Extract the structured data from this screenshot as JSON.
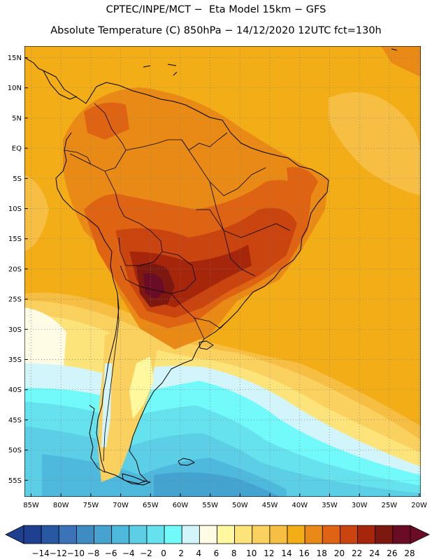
{
  "title_line1": "CPTEC/INPE/MCT −  Eta Model 15km − GFS",
  "title_line2": "Absolute Temperature (C) 850hPa − 14/12/2020 12UTC fct=130h",
  "lat_labels": [
    "15N",
    "10N",
    "5N",
    "EQ",
    "5S",
    "10S",
    "15S",
    "20S",
    "25S",
    "30S",
    "35S",
    "40S",
    "45S",
    "50S",
    "55S"
  ],
  "lon_labels": [
    "85W",
    "80W",
    "75W",
    "70W",
    "65W",
    "60W",
    "55W",
    "50W",
    "45W",
    "40W",
    "35W",
    "30W",
    "25W",
    "20W"
  ],
  "colorbar": {
    "colors": [
      "#1f3f8f",
      "#2958a3",
      "#3a73b7",
      "#3f8cc2",
      "#44a3cf",
      "#4eb9dc",
      "#5ccfe6",
      "#66e2ef",
      "#72fafb",
      "#d2f5fb",
      "#fffce6",
      "#fff89e",
      "#fde47a",
      "#fad05e",
      "#f6be42",
      "#f3ad17",
      "#e88a15",
      "#de6312",
      "#c9440f",
      "#a6260c",
      "#7d1811",
      "#6a0c26"
    ],
    "labels": [
      "−14",
      "−12",
      "−10",
      "−8",
      "−6",
      "−4",
      "−2",
      "0",
      "2",
      "4",
      "6",
      "8",
      "10",
      "12",
      "14",
      "16",
      "18",
      "20",
      "22",
      "24",
      "26",
      "28"
    ],
    "low_end_color": "#1f3f8f",
    "high_end_color": "#6a0c26"
  },
  "map_colors": {
    "ocean_warm": "#f3ad17",
    "c18": "#e88a15",
    "c20": "#de6312",
    "c22": "#c9440f",
    "c24": "#a6260c",
    "c26": "#7d1811",
    "c28": "#6a0c26",
    "c16": "#f6be42",
    "c14": "#fad05e",
    "c12": "#fde47a",
    "c10": "#fff89e",
    "c8": "#fffce6",
    "c6": "#d2f5fb",
    "c4": "#72fafb",
    "c2": "#66e2ef",
    "c0": "#5ccfe6",
    "cm2": "#4eb9dc",
    "cm4": "#44a3cf",
    "cm6": "#3f8cc2"
  }
}
